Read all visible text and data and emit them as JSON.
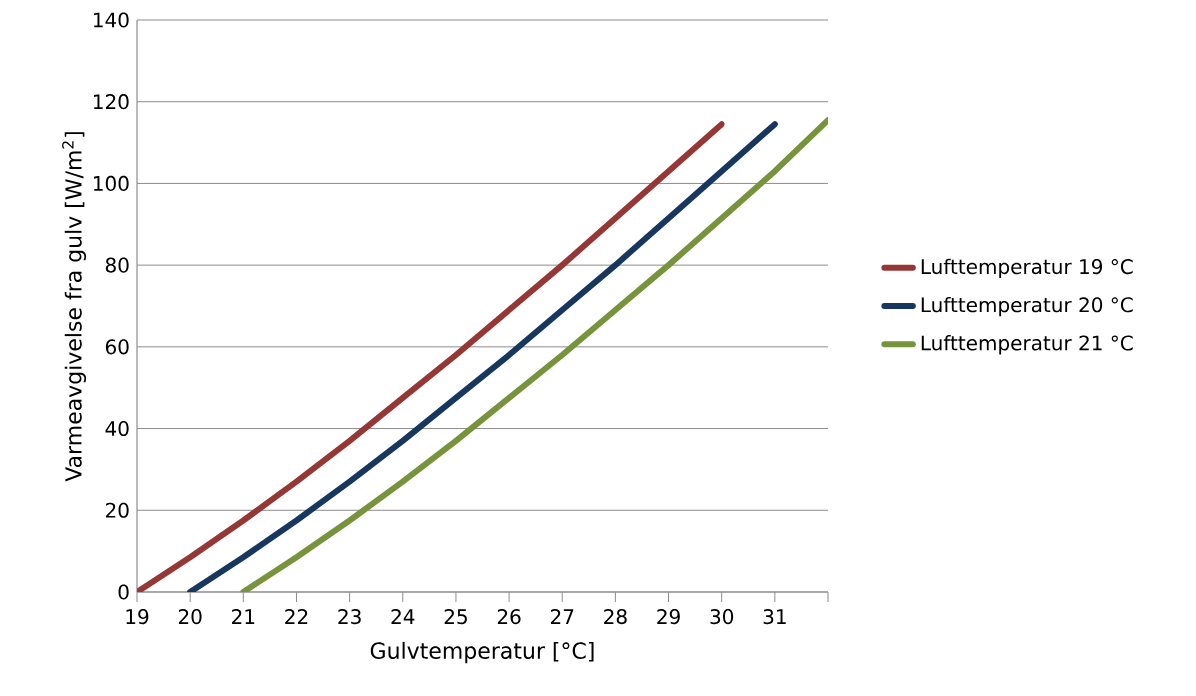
{
  "chart_data": {
    "type": "line",
    "xlabel": "Gulvtemperatur  [°C]",
    "ylabel": "Varmeavgivelse fra gulv [W/m$^{2}$]",
    "xlim": [
      19,
      32
    ],
    "ylim": [
      0,
      140
    ],
    "xticks": [
      19,
      20,
      21,
      22,
      23,
      24,
      25,
      26,
      27,
      28,
      29,
      30,
      31,
      {
        "value": 32,
        "label": null
      }
    ],
    "yticks": [
      0,
      20,
      40,
      60,
      80,
      100,
      120,
      140
    ],
    "grid": "y",
    "legend": "right",
    "marker": "none",
    "line_style": "solid",
    "series": [
      {
        "name": "Lufttemperatur 19 °C",
        "color": "#953735",
        "x": [
          19,
          20,
          21,
          22,
          23,
          24,
          25,
          26,
          27,
          28,
          29,
          30
        ],
        "values": [
          0,
          8.5,
          17.5,
          27,
          37,
          47.5,
          58,
          69,
          80,
          91.5,
          103,
          114.5
        ]
      },
      {
        "name": "Lufttemperatur 20 °C",
        "color": "#17375e",
        "x": [
          20,
          21,
          22,
          23,
          24,
          25,
          26,
          27,
          28,
          29,
          30,
          31
        ],
        "values": [
          0,
          8.5,
          17.5,
          27,
          37,
          47.5,
          58,
          69,
          80,
          91.5,
          103,
          114.5
        ]
      },
      {
        "name": "Lufttemperatur 21 °C",
        "color": "#77933c",
        "x": [
          21,
          22,
          23,
          24,
          25,
          26,
          27,
          28,
          29,
          30,
          31,
          32
        ],
        "values": [
          0,
          8.5,
          17.5,
          27,
          37,
          47.5,
          58,
          69,
          80,
          91.5,
          103,
          115.5
        ]
      }
    ]
  }
}
